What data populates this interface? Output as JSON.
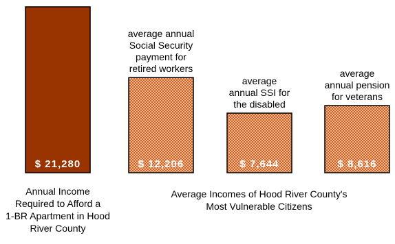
{
  "chart_data": {
    "type": "bar",
    "categories": [
      "Annual Income Required to Afford a 1-BR Apartment in Hood River County",
      "average annual Social Security payment for retired workers",
      "average annual SSI for the disabled",
      "average annual pension for veterans"
    ],
    "values": [
      21280,
      12206,
      7644,
      8616
    ],
    "value_labels": [
      "$ 21,280",
      "$ 12,206",
      "$ 7,644",
      "$ 8,616"
    ],
    "bar_label_lines": [
      [],
      [
        "average annual",
        "Social Security",
        "payment for",
        "retired workers"
      ],
      [
        "average",
        "annual SSI for",
        "the disabled"
      ],
      [
        "average",
        "annual pension",
        "for veterans"
      ]
    ],
    "caption_left_lines": [
      "Annual Income",
      "Required to Afford a",
      "1-BR Apartment in Hood",
      "River County"
    ],
    "caption_right_lines": [
      "Average Incomes of Hood River County's",
      "Most Vulnerable Citizens"
    ],
    "ylim": [
      0,
      21280
    ],
    "grid": false,
    "legend": "none",
    "colors": {
      "first_bar": "#993300",
      "first_bar_border": "#000000",
      "pattern_base": "#f0b48c",
      "pattern_dot": "#c86428",
      "bar_border": "#000000"
    }
  }
}
